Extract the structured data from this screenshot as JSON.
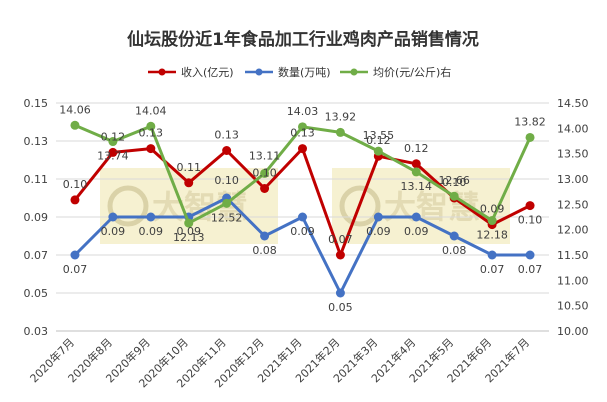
{
  "chart_data": {
    "type": "line",
    "title": "仙坛股份近1年食品加工行业鸡肉产品销售情况",
    "categories": [
      "2020年7月",
      "2020年8月",
      "2020年9月",
      "2020年10月",
      "2020年11月",
      "2020年12月",
      "2021年1月",
      "2021年2月",
      "2021年3月",
      "2021年4月",
      "2021年5月",
      "2021年6月",
      "2021年7月"
    ],
    "left_axis": {
      "min": 0.03,
      "max": 0.15,
      "ticks": [
        "0.03",
        "0.05",
        "0.07",
        "0.09",
        "0.11",
        "0.13",
        "0.15"
      ]
    },
    "right_axis": {
      "min": 10.0,
      "max": 14.5,
      "ticks": [
        "10.00",
        "10.50",
        "11.00",
        "11.50",
        "12.00",
        "12.50",
        "13.00",
        "13.50",
        "14.00",
        "14.50"
      ]
    },
    "legend_position": "top",
    "grid": true,
    "watermark_text": "大智慧",
    "series": [
      {
        "name": "收入(亿元)",
        "axis": "left",
        "color": "#c00000",
        "values": [
          0.099,
          0.124,
          0.126,
          0.108,
          0.125,
          0.105,
          0.126,
          0.07,
          0.122,
          0.118,
          0.1,
          0.086,
          0.096
        ],
        "labels": [
          "0.10",
          "0.12",
          "0.13",
          "0.11",
          "0.13",
          "0.10",
          "0.13",
          "0.07",
          "0.12",
          "0.12",
          "0.10",
          "0.09",
          "0.10"
        ]
      },
      {
        "name": "数量(万吨)",
        "axis": "left",
        "color": "#4472c4",
        "values": [
          0.07,
          0.09,
          0.09,
          0.09,
          0.1,
          0.08,
          0.09,
          0.05,
          0.09,
          0.09,
          0.08,
          0.07,
          0.07
        ],
        "labels": [
          "0.07",
          "0.09",
          "0.09",
          "0.09",
          "0.10",
          "0.08",
          "0.09",
          "0.05",
          "0.09",
          "0.09",
          "0.08",
          "0.07",
          "0.07"
        ]
      },
      {
        "name": "均价(元/公斤)右",
        "axis": "right",
        "color": "#70ad47",
        "values": [
          14.06,
          13.74,
          14.04,
          12.13,
          12.52,
          13.11,
          14.03,
          13.92,
          13.55,
          13.14,
          12.66,
          12.18,
          13.82
        ],
        "labels": [
          "14.06",
          "13.74",
          "14.04",
          "12.13",
          "12.52",
          "13.11",
          "14.03",
          "13.92",
          "13.55",
          "13.14",
          "12.66",
          "12.18",
          "13.82"
        ]
      }
    ]
  }
}
